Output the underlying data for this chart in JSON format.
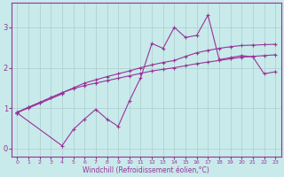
{
  "xlabel": "Windchill (Refroidissement éolien,°C)",
  "x": [
    0,
    1,
    2,
    3,
    4,
    5,
    6,
    7,
    8,
    9,
    10,
    11,
    12,
    13,
    14,
    15,
    16,
    17,
    18,
    19,
    20,
    21,
    22,
    23
  ],
  "series": [
    {
      "y": [
        0.9,
        1.02,
        1.14,
        1.26,
        1.38,
        1.48,
        1.56,
        1.62,
        1.68,
        1.74,
        1.8,
        1.86,
        1.92,
        1.96,
        2.0,
        2.05,
        2.1,
        2.14,
        2.18,
        2.22,
        2.26,
        2.28,
        2.3,
        2.32
      ],
      "style": "smooth"
    },
    {
      "y": [
        0.88,
        1.02,
        1.14,
        1.26,
        1.38,
        1.5,
        1.62,
        1.7,
        1.78,
        1.85,
        1.92,
        2.0,
        2.07,
        2.13,
        2.18,
        2.28,
        2.37,
        2.43,
        2.48,
        2.52,
        2.55,
        2.56,
        2.57,
        2.58
      ],
      "style": "smooth"
    },
    {
      "y": [
        0.9,
        1.0,
        null,
        null,
        1.35,
        null,
        null,
        null,
        null,
        null,
        null,
        null,
        null,
        null,
        null,
        null,
        null,
        null,
        null,
        null,
        null,
        null,
        null,
        null
      ],
      "style": "jagged"
    },
    {
      "y": [
        0.88,
        null,
        null,
        null,
        0.07,
        0.47,
        0.73,
        0.97,
        0.73,
        0.55,
        1.18,
        1.75,
        2.6,
        2.48,
        3.0,
        2.75,
        2.8,
        3.3,
        2.2,
        2.25,
        2.3,
        2.27,
        1.85,
        1.9
      ],
      "style": "jagged"
    }
  ],
  "line_color": "#993399",
  "bg_color": "#c8eaea",
  "grid_color": "#aacccc",
  "ylim": [
    -0.2,
    3.6
  ],
  "xlim": [
    -0.5,
    23.5
  ],
  "yticks": [
    0,
    1,
    2,
    3
  ],
  "xticks": [
    0,
    1,
    2,
    3,
    4,
    5,
    6,
    7,
    8,
    9,
    10,
    11,
    12,
    13,
    14,
    15,
    16,
    17,
    18,
    19,
    20,
    21,
    22,
    23
  ]
}
